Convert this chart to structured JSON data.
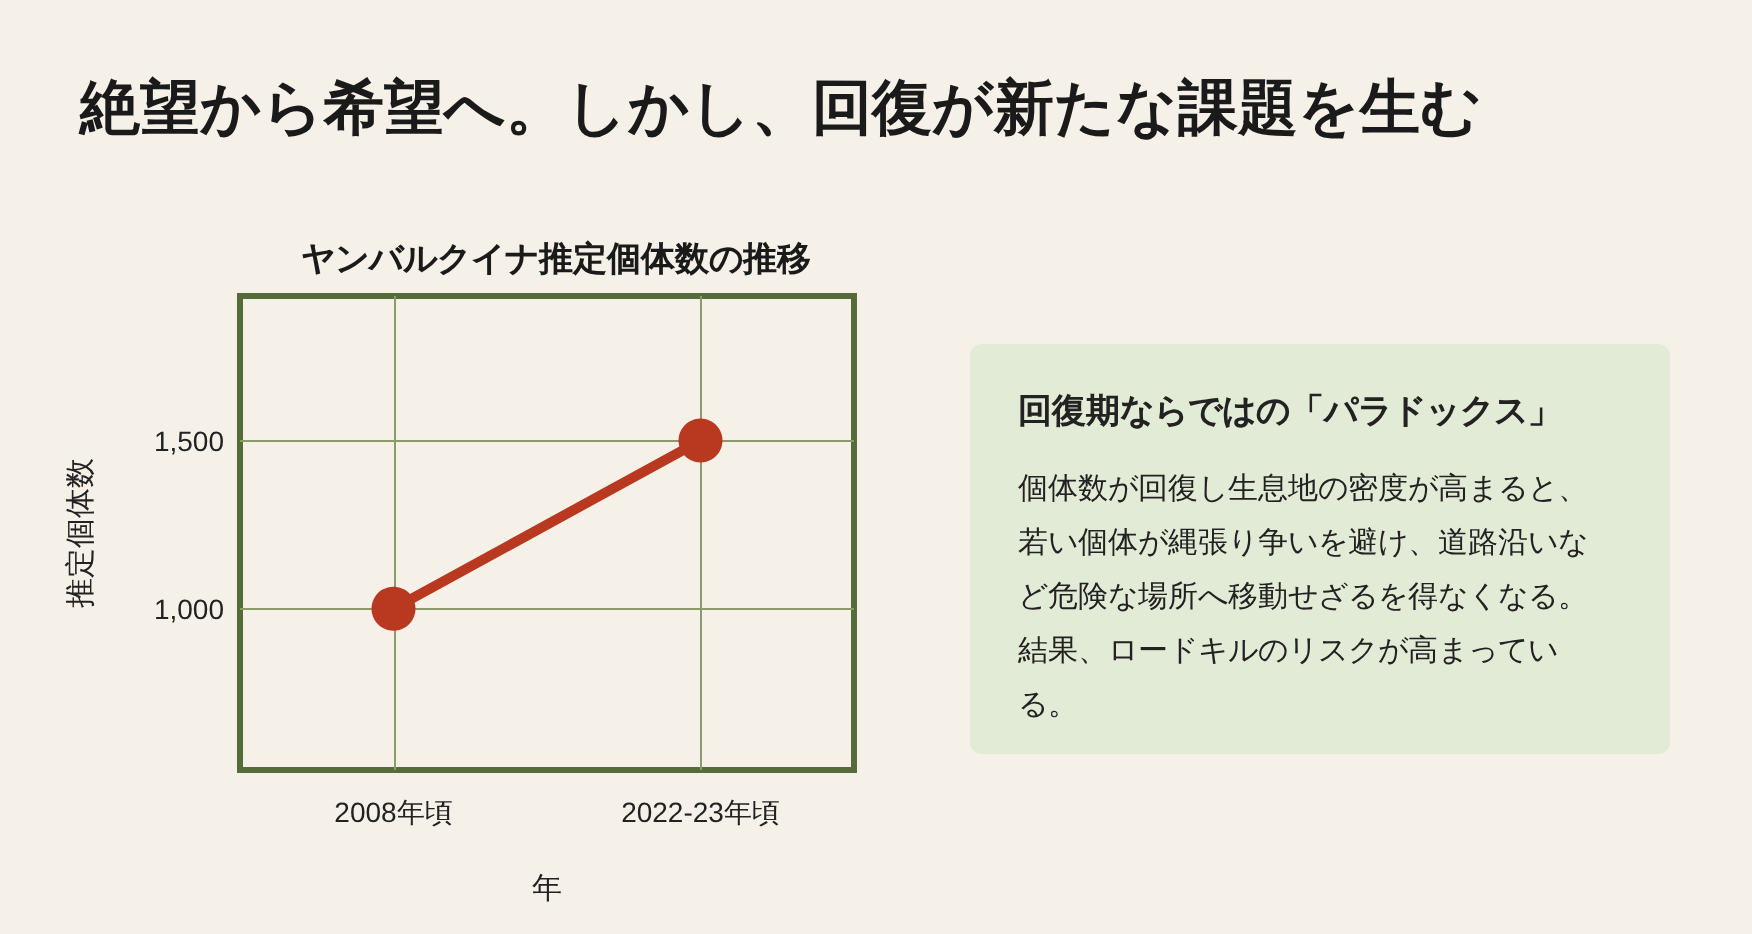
{
  "chart_data": [
    {
      "type": "line",
      "title": "絶望から希望へ。しかし、回復が新たな課題を生む",
      "subtitle": "ヤンバルクイナ推定個体数の推移",
      "xlabel": "年",
      "ylabel": "推定個体数",
      "categories": [
        "2008年頃",
        "2022-23年頃"
      ],
      "series": [
        {
          "color": "#b8391f",
          "values": [
            1000,
            1500
          ]
        }
      ],
      "ylim": [
        520,
        1930
      ],
      "yticks": [
        {
          "value": 1000,
          "label": "1,000"
        },
        {
          "value": 1500,
          "label": "1,500"
        }
      ],
      "grid": true,
      "marker": "circle",
      "line_style": "solid"
    },
    {
      "type": "other",
      "title": "回復期ならではの「パラドックス」",
      "annotations": [
        "個体数が回復し生息地の密度が高まると、若い個体が縄張り争いを避け、道路沿いなど危険な場所へ移動せざるを得なくなる。結果、ロードキルのリスクが高まっている。"
      ]
    }
  ]
}
